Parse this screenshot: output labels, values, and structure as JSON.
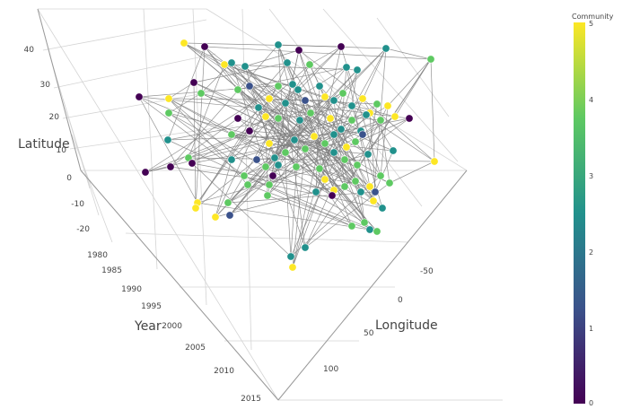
{
  "chart_data": {
    "type": "scatter",
    "subtype": "3d-network",
    "axes": {
      "x": {
        "label": "Longitude",
        "ticks": [
          "-50",
          "0",
          "50",
          "100"
        ]
      },
      "y": {
        "label": "Year",
        "ticks": [
          "1980",
          "1985",
          "1990",
          "1995",
          "2000",
          "2005",
          "2010",
          "2015"
        ]
      },
      "z": {
        "label": "Latitude",
        "ticks": [
          "40",
          "30",
          "20",
          "10",
          "0",
          "-10",
          "-20"
        ]
      }
    },
    "colorbar": {
      "title": "Community",
      "range": [
        0,
        5
      ],
      "ticks": [
        "5",
        "4",
        "3",
        "2",
        "1",
        "0"
      ],
      "colorscale": [
        "#440154",
        "#3b528b",
        "#21918c",
        "#5ec962",
        "#fde725"
      ]
    },
    "edge_color": "#808080",
    "grid": true,
    "nodes": [
      [
        205,
        48,
        5
      ],
      [
        228,
        52,
        0
      ],
      [
        310,
        50,
        3
      ],
      [
        333,
        56,
        0
      ],
      [
        380,
        52,
        0
      ],
      [
        430,
        54,
        3
      ],
      [
        480,
        66,
        4
      ],
      [
        250,
        72,
        5
      ],
      [
        258,
        70,
        3
      ],
      [
        273,
        74,
        3
      ],
      [
        320,
        70,
        3
      ],
      [
        345,
        72,
        4
      ],
      [
        386,
        75,
        2
      ],
      [
        398,
        78,
        3
      ],
      [
        216,
        92,
        0
      ],
      [
        155,
        108,
        0
      ],
      [
        188,
        110,
        5
      ],
      [
        224,
        104,
        4
      ],
      [
        265,
        100,
        4
      ],
      [
        278,
        96,
        1
      ],
      [
        300,
        110,
        5
      ],
      [
        310,
        96,
        4
      ],
      [
        318,
        115,
        2
      ],
      [
        326,
        94,
        2
      ],
      [
        332,
        100,
        3
      ],
      [
        340,
        112,
        1
      ],
      [
        356,
        96,
        2
      ],
      [
        362,
        108,
        5
      ],
      [
        372,
        112,
        3
      ],
      [
        382,
        104,
        4
      ],
      [
        392,
        118,
        2
      ],
      [
        404,
        110,
        5
      ],
      [
        420,
        116,
        4
      ],
      [
        432,
        118,
        5
      ],
      [
        188,
        126,
        4
      ],
      [
        265,
        132,
        0
      ],
      [
        288,
        120,
        3
      ],
      [
        296,
        130,
        5
      ],
      [
        310,
        132,
        4
      ],
      [
        334,
        134,
        3
      ],
      [
        346,
        126,
        4
      ],
      [
        368,
        132,
        5
      ],
      [
        380,
        144,
        2
      ],
      [
        392,
        134,
        4
      ],
      [
        402,
        146,
        2
      ],
      [
        412,
        126,
        5
      ],
      [
        424,
        134,
        4
      ],
      [
        440,
        130,
        5
      ],
      [
        456,
        132,
        0
      ],
      [
        187,
        156,
        3
      ],
      [
        258,
        150,
        4
      ],
      [
        278,
        146,
        0
      ],
      [
        300,
        160,
        5
      ],
      [
        306,
        176,
        2
      ],
      [
        318,
        170,
        4
      ],
      [
        328,
        156,
        3
      ],
      [
        340,
        166,
        4
      ],
      [
        350,
        152,
        5
      ],
      [
        362,
        160,
        4
      ],
      [
        372,
        150,
        3
      ],
      [
        386,
        164,
        5
      ],
      [
        396,
        158,
        4
      ],
      [
        404,
        150,
        1
      ],
      [
        210,
        176,
        4
      ],
      [
        214,
        182,
        0
      ],
      [
        162,
        192,
        0
      ],
      [
        258,
        178,
        2
      ],
      [
        272,
        196,
        4
      ],
      [
        286,
        178,
        1
      ],
      [
        296,
        186,
        4
      ],
      [
        310,
        184,
        2
      ],
      [
        330,
        186,
        4
      ],
      [
        356,
        188,
        4
      ],
      [
        372,
        170,
        3
      ],
      [
        384,
        178,
        4
      ],
      [
        398,
        184,
        4
      ],
      [
        410,
        172,
        3
      ],
      [
        438,
        168,
        2
      ],
      [
        484,
        180,
        5
      ],
      [
        276,
        206,
        4
      ],
      [
        298,
        218,
        4
      ],
      [
        304,
        196,
        0
      ],
      [
        352,
        214,
        3
      ],
      [
        362,
        200,
        5
      ],
      [
        372,
        212,
        5
      ],
      [
        384,
        208,
        4
      ],
      [
        396,
        202,
        4
      ],
      [
        402,
        214,
        3
      ],
      [
        412,
        208,
        5
      ],
      [
        418,
        214,
        1
      ],
      [
        424,
        196,
        4
      ],
      [
        434,
        204,
        4
      ],
      [
        426,
        232,
        2
      ],
      [
        220,
        226,
        5
      ],
      [
        218,
        232,
        5
      ],
      [
        240,
        242,
        5
      ],
      [
        256,
        240,
        1
      ],
      [
        254,
        226,
        4
      ],
      [
        392,
        252,
        4
      ],
      [
        406,
        248,
        4
      ],
      [
        412,
        256,
        3
      ],
      [
        420,
        258,
        4
      ],
      [
        340,
        276,
        3
      ],
      [
        324,
        286,
        2
      ],
      [
        326,
        298,
        5
      ],
      [
        300,
        206,
        4
      ],
      [
        190,
        186,
        0
      ],
      [
        370,
        218,
        0
      ],
      [
        416,
        224,
        5
      ],
      [
        408,
        128,
        3
      ]
    ],
    "edges": [
      [
        0,
        4
      ],
      [
        0,
        19
      ],
      [
        0,
        44
      ],
      [
        0,
        61
      ],
      [
        0,
        87
      ],
      [
        1,
        6
      ],
      [
        1,
        20
      ],
      [
        1,
        49
      ],
      [
        1,
        71
      ],
      [
        1,
        94
      ],
      [
        2,
        5
      ],
      [
        2,
        24
      ],
      [
        2,
        56
      ],
      [
        2,
        84
      ],
      [
        2,
        103
      ],
      [
        3,
        9
      ],
      [
        3,
        31
      ],
      [
        3,
        58
      ],
      [
        3,
        80
      ],
      [
        3,
        99
      ],
      [
        4,
        11
      ],
      [
        4,
        37
      ],
      [
        4,
        66
      ],
      [
        4,
        90
      ],
      [
        5,
        6
      ],
      [
        5,
        29
      ],
      [
        5,
        72
      ],
      [
        5,
        97
      ],
      [
        5,
        108
      ],
      [
        6,
        33
      ],
      [
        6,
        47
      ],
      [
        6,
        78
      ],
      [
        6,
        85
      ],
      [
        7,
        13
      ],
      [
        7,
        27
      ],
      [
        7,
        45
      ],
      [
        7,
        63
      ],
      [
        7,
        92
      ],
      [
        8,
        17
      ],
      [
        8,
        40
      ],
      [
        8,
        69
      ],
      [
        8,
        101
      ],
      [
        9,
        22
      ],
      [
        9,
        52
      ],
      [
        9,
        86
      ],
      [
        10,
        14
      ],
      [
        10,
        35
      ],
      [
        10,
        60
      ],
      [
        10,
        95
      ],
      [
        11,
        26
      ],
      [
        11,
        50
      ],
      [
        11,
        75
      ],
      [
        12,
        18
      ],
      [
        12,
        42
      ],
      [
        12,
        64
      ],
      [
        12,
        88
      ],
      [
        13,
        30
      ],
      [
        13,
        55
      ],
      [
        13,
        82
      ],
      [
        14,
        16
      ],
      [
        14,
        38
      ],
      [
        14,
        73
      ],
      [
        15,
        23
      ],
      [
        15,
        46
      ],
      [
        15,
        67
      ],
      [
        15,
        89
      ],
      [
        16,
        28
      ],
      [
        16,
        53
      ],
      [
        16,
        79
      ],
      [
        16,
        105
      ],
      [
        17,
        34
      ],
      [
        17,
        62
      ],
      [
        17,
        91
      ],
      [
        18,
        36
      ],
      [
        18,
        57
      ],
      [
        18,
        83
      ],
      [
        19,
        41
      ],
      [
        19,
        70
      ],
      [
        19,
        98
      ],
      [
        20,
        32
      ],
      [
        20,
        59
      ],
      [
        20,
        77
      ],
      [
        21,
        43
      ],
      [
        21,
        65
      ],
      [
        21,
        93
      ],
      [
        22,
        48
      ],
      [
        22,
        76
      ],
      [
        22,
        102
      ],
      [
        23,
        39
      ],
      [
        23,
        68
      ],
      [
        24,
        51
      ],
      [
        24,
        81
      ],
      [
        25,
        54
      ],
      [
        25,
        74
      ],
      [
        25,
        100
      ],
      [
        26,
        44
      ],
      [
        26,
        87
      ],
      [
        27,
        61
      ],
      [
        27,
        96
      ],
      [
        28,
        47
      ],
      [
        28,
        85
      ],
      [
        29,
        63
      ],
      [
        29,
        104
      ],
      [
        30,
        49
      ],
      [
        30,
        92
      ],
      [
        31,
        56
      ],
      [
        31,
        78
      ],
      [
        32,
        72
      ],
      [
        32,
        97
      ],
      [
        33,
        58
      ],
      [
        33,
        90
      ],
      [
        34,
        66
      ],
      [
        34,
        99
      ],
      [
        35,
        84
      ],
      [
        35,
        106
      ],
      [
        36,
        71
      ],
      [
        36,
        94
      ],
      [
        37,
        80
      ],
      [
        37,
        107
      ],
      [
        38,
        69
      ],
      [
        38,
        101
      ],
      [
        39,
        86
      ],
      [
        39,
        103
      ],
      [
        40,
        75
      ],
      [
        40,
        95
      ],
      [
        41,
        60
      ],
      [
        41,
        88
      ],
      [
        42,
        82
      ],
      [
        42,
        108
      ],
      [
        43,
        73
      ],
      [
        43,
        105
      ],
      [
        44,
        79
      ],
      [
        45,
        67
      ],
      [
        45,
        89
      ],
      [
        46,
        53
      ],
      [
        46,
        91
      ],
      [
        47,
        62
      ],
      [
        48,
        83
      ],
      [
        48,
        57
      ],
      [
        49,
        98
      ],
      [
        50,
        70
      ],
      [
        50,
        77
      ],
      [
        51,
        93
      ],
      [
        51,
        65
      ],
      [
        52,
        102
      ],
      [
        52,
        76
      ],
      [
        53,
        68
      ],
      [
        54,
        81
      ],
      [
        54,
        100
      ],
      [
        55,
        96
      ],
      [
        55,
        74
      ],
      [
        56,
        104
      ],
      [
        57,
        85
      ],
      [
        58,
        92
      ],
      [
        59,
        87
      ],
      [
        59,
        108
      ],
      [
        60,
        99
      ],
      [
        61,
        90
      ],
      [
        62,
        97
      ],
      [
        63,
        78
      ],
      [
        64,
        103
      ],
      [
        64,
        84
      ],
      [
        65,
        106
      ],
      [
        66,
        95
      ],
      [
        67,
        101
      ],
      [
        68,
        94
      ],
      [
        69,
        88
      ],
      [
        70,
        107
      ],
      [
        71,
        80
      ],
      [
        72,
        86
      ],
      [
        73,
        105
      ],
      [
        74,
        102
      ],
      [
        75,
        82
      ],
      [
        76,
        93
      ],
      [
        77,
        89
      ],
      [
        78,
        91
      ],
      [
        79,
        100
      ],
      [
        80,
        98
      ],
      [
        81,
        96
      ],
      [
        83,
        104
      ],
      [
        84,
        106
      ],
      [
        85,
        107
      ],
      [
        86,
        95
      ],
      [
        87,
        99
      ],
      [
        88,
        108
      ],
      [
        89,
        97
      ],
      [
        90,
        103
      ],
      [
        91,
        102
      ],
      [
        92,
        105
      ],
      [
        93,
        100
      ],
      [
        0,
        108
      ],
      [
        1,
        107
      ],
      [
        2,
        106
      ],
      [
        3,
        105
      ],
      [
        4,
        104
      ],
      [
        5,
        103
      ],
      [
        6,
        102
      ],
      [
        7,
        101
      ],
      [
        8,
        100
      ],
      [
        9,
        99
      ],
      [
        10,
        98
      ],
      [
        11,
        97
      ],
      [
        12,
        96
      ],
      [
        13,
        95
      ],
      [
        14,
        94
      ],
      [
        15,
        93
      ],
      [
        16,
        92
      ],
      [
        17,
        91
      ],
      [
        18,
        90
      ],
      [
        19,
        89
      ],
      [
        20,
        88
      ],
      [
        21,
        87
      ],
      [
        22,
        86
      ],
      [
        23,
        85
      ],
      [
        24,
        84
      ],
      [
        25,
        83
      ],
      [
        26,
        82
      ],
      [
        27,
        81
      ],
      [
        28,
        80
      ],
      [
        29,
        79
      ],
      [
        30,
        78
      ],
      [
        31,
        77
      ],
      [
        32,
        76
      ],
      [
        33,
        75
      ],
      [
        34,
        74
      ],
      [
        35,
        73
      ],
      [
        36,
        72
      ],
      [
        37,
        71
      ],
      [
        38,
        70
      ],
      [
        39,
        69
      ],
      [
        40,
        68
      ],
      [
        41,
        67
      ],
      [
        42,
        66
      ],
      [
        43,
        65
      ],
      [
        44,
        64
      ],
      [
        45,
        63
      ],
      [
        46,
        62
      ],
      [
        47,
        61
      ],
      [
        48,
        60
      ],
      [
        49,
        59
      ],
      [
        50,
        58
      ],
      [
        51,
        57
      ],
      [
        52,
        56
      ],
      [
        53,
        55
      ]
    ]
  }
}
